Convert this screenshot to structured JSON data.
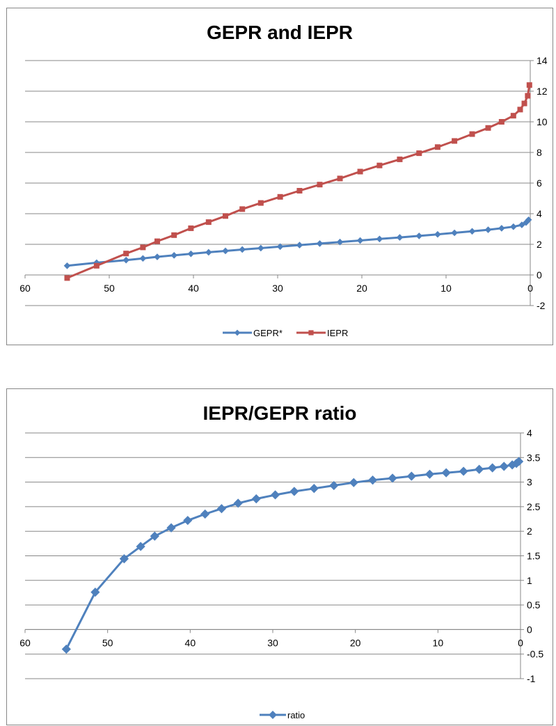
{
  "charts": [
    {
      "id": "gepr-iepr",
      "chart_data": {
        "type": "line",
        "title": "GEPR and IEPR",
        "xlabel": "",
        "ylabel": "",
        "xlim": [
          60,
          0
        ],
        "ylim": [
          -2,
          14
        ],
        "x_ticks": [
          60,
          50,
          40,
          30,
          20,
          10,
          0
        ],
        "y_ticks": [
          -2,
          0,
          2,
          4,
          6,
          8,
          10,
          12,
          14
        ],
        "y_axis_side": "right",
        "grid": "horizontal",
        "legend": "bottom",
        "series": [
          {
            "name": "GEPR*",
            "color": "#4F81BD",
            "marker": "diamond",
            "x": [
              55,
              51.5,
              48,
              46,
              44.3,
              42.3,
              40.3,
              38.2,
              36.2,
              34.2,
              32,
              29.7,
              27.4,
              25,
              22.6,
              20.2,
              17.9,
              15.5,
              13.2,
              11,
              9,
              6.9,
              5,
              3.4,
              2,
              1,
              0.5,
              0.2
            ],
            "y": [
              0.6,
              0.8,
              0.97,
              1.08,
              1.18,
              1.28,
              1.38,
              1.48,
              1.57,
              1.66,
              1.75,
              1.85,
              1.95,
              2.05,
              2.15,
              2.25,
              2.35,
              2.45,
              2.55,
              2.65,
              2.75,
              2.85,
              2.95,
              3.05,
              3.15,
              3.27,
              3.42,
              3.6
            ]
          },
          {
            "name": "IEPR",
            "color": "#C0504D",
            "marker": "square",
            "x": [
              55,
              51.5,
              48,
              46,
              44.3,
              42.3,
              40.3,
              38.2,
              36.2,
              34.2,
              32,
              29.7,
              27.4,
              25,
              22.6,
              20.2,
              17.9,
              15.5,
              13.2,
              11,
              9,
              6.9,
              5,
              3.4,
              2,
              1.2,
              0.7,
              0.3,
              0.1
            ],
            "y": [
              -0.2,
              0.6,
              1.4,
              1.8,
              2.2,
              2.6,
              3.05,
              3.45,
              3.85,
              4.3,
              4.7,
              5.1,
              5.5,
              5.9,
              6.3,
              6.75,
              7.15,
              7.55,
              7.95,
              8.35,
              8.75,
              9.2,
              9.6,
              10.0,
              10.4,
              10.8,
              11.2,
              11.7,
              12.4
            ]
          }
        ]
      }
    },
    {
      "id": "ratio",
      "chart_data": {
        "type": "line",
        "title": "IEPR/GEPR ratio",
        "xlabel": "",
        "ylabel": "",
        "xlim": [
          60,
          0
        ],
        "ylim": [
          -1,
          4
        ],
        "x_ticks": [
          60,
          50,
          40,
          30,
          20,
          10,
          0
        ],
        "y_ticks": [
          -1,
          -0.5,
          0,
          0.5,
          1,
          1.5,
          2,
          2.5,
          3,
          3.5,
          4
        ],
        "y_axis_side": "right",
        "grid": "horizontal",
        "legend": "bottom",
        "series": [
          {
            "name": "ratio",
            "color": "#4F81BD",
            "marker": "diamond",
            "x": [
              55,
              51.5,
              48,
              46,
              44.3,
              42.3,
              40.3,
              38.2,
              36.2,
              34.2,
              32,
              29.7,
              27.4,
              25,
              22.6,
              20.2,
              17.9,
              15.5,
              13.2,
              11,
              9,
              6.9,
              5,
              3.4,
              2,
              1,
              0.5,
              0.2
            ],
            "y": [
              -0.4,
              0.76,
              1.44,
              1.69,
              1.9,
              2.07,
              2.22,
              2.35,
              2.46,
              2.57,
              2.66,
              2.74,
              2.81,
              2.87,
              2.93,
              2.99,
              3.04,
              3.08,
              3.12,
              3.16,
              3.19,
              3.22,
              3.26,
              3.29,
              3.32,
              3.35,
              3.38,
              3.42
            ]
          }
        ]
      }
    }
  ]
}
